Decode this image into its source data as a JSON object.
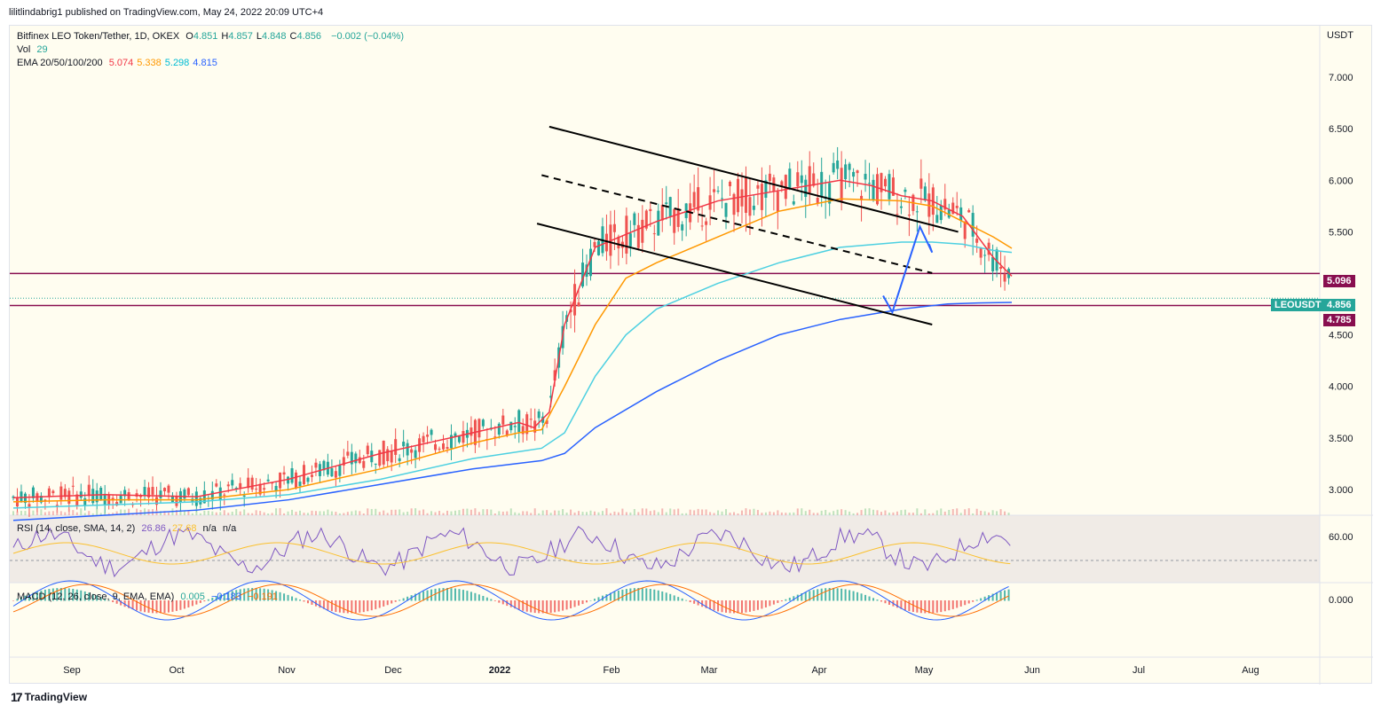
{
  "header": {
    "publisher": "lilitlindabrig1 published on TradingView.com, May 24, 2022 20:09 UTC+4"
  },
  "legend": {
    "symbol": "Bitfinex LEO Token/Tether, 1D, OKEX",
    "ohlc": [
      {
        "k": "O",
        "v": "4.851"
      },
      {
        "k": "H",
        "v": "4.857"
      },
      {
        "k": "L",
        "v": "4.848"
      },
      {
        "k": "C",
        "v": "4.856"
      }
    ],
    "change": "−0.002 (−0.04%)",
    "vol_label": "Vol",
    "vol_value": "29",
    "ema_label": "EMA 20/50/100/200",
    "ema_values": [
      {
        "v": "5.074",
        "color": "#f23645"
      },
      {
        "v": "5.338",
        "color": "#ff9800"
      },
      {
        "v": "5.298",
        "color": "#00bcd4"
      },
      {
        "v": "4.815",
        "color": "#2962ff"
      }
    ],
    "rsi_label": "RSI (14, close, SMA, 14, 2)",
    "rsi_value": "26.86",
    "rsi_sma": "27.68",
    "rsi_na1": "n/a",
    "rsi_na2": "n/a",
    "macd_label": "MACD (12, 26, close, 9, EMA, EMA)",
    "macd_hist": "0.005",
    "macd_line": "−0.183",
    "macd_signal": "−0.191"
  },
  "axis": {
    "currency": "USDT",
    "price_ticks": [
      "7.000",
      "6.500",
      "6.000",
      "5.500",
      "5.000",
      "4.500",
      "4.000",
      "3.500",
      "3.000"
    ],
    "rsi_ticks": [
      "60.00"
    ],
    "macd_ticks": [
      "0.000"
    ],
    "x_ticks": [
      "Sep",
      "Oct",
      "Nov",
      "Dec",
      "2022",
      "Feb",
      "Mar",
      "Apr",
      "May",
      "Jun",
      "Jul",
      "Aug"
    ]
  },
  "tags": {
    "resistance": "5.096",
    "symbol_name": "LEOUSDT",
    "last": "4.856",
    "support": "4.785"
  },
  "colors": {
    "up": "#26a69a",
    "down": "#ef5350",
    "ema20": "#f23645",
    "ema50": "#ff9800",
    "ema100": "#4dd0e1",
    "ema200": "#2962ff",
    "level": "#880e4f",
    "rsi": "#7e57c2",
    "rsi_sma": "#fbc02d",
    "macd": "#2962ff",
    "signal": "#ff6d00",
    "arrow": "#2962ff"
  },
  "footer": {
    "brand": "TradingView"
  },
  "chart_data": {
    "type": "candlestick",
    "ylim": [
      2.75,
      7.5
    ],
    "horizontal_levels": [
      5.096,
      4.785
    ],
    "last_price": 4.856,
    "ema": {
      "ema20": {
        "x": [
          0,
          60,
          120,
          180,
          240,
          300,
          330,
          340,
          350,
          360,
          380,
          420,
          460,
          500,
          540,
          560,
          580,
          600,
          620,
          630,
          640,
          652
        ],
        "y": [
          2.92,
          2.95,
          2.93,
          3.1,
          3.35,
          3.55,
          3.65,
          3.6,
          3.75,
          4.6,
          5.35,
          5.6,
          5.8,
          5.9,
          6.0,
          5.95,
          5.85,
          5.8,
          5.65,
          5.45,
          5.25,
          5.07
        ]
      },
      "ema50": {
        "x": [
          0,
          60,
          120,
          180,
          240,
          300,
          330,
          345,
          360,
          380,
          400,
          420,
          460,
          500,
          540,
          580,
          600,
          620,
          640,
          652
        ],
        "y": [
          2.88,
          2.9,
          2.9,
          3.0,
          3.2,
          3.45,
          3.55,
          3.58,
          4.0,
          4.6,
          5.05,
          5.2,
          5.45,
          5.7,
          5.82,
          5.8,
          5.75,
          5.6,
          5.45,
          5.34
        ]
      },
      "ema100": {
        "x": [
          0,
          60,
          120,
          180,
          240,
          300,
          345,
          360,
          380,
          400,
          420,
          460,
          500,
          540,
          580,
          600,
          620,
          640,
          652
        ],
        "y": [
          2.82,
          2.85,
          2.88,
          2.95,
          3.1,
          3.3,
          3.4,
          3.55,
          4.1,
          4.5,
          4.75,
          5.0,
          5.2,
          5.35,
          5.4,
          5.4,
          5.38,
          5.32,
          5.3
        ]
      },
      "ema200": {
        "x": [
          0,
          60,
          120,
          180,
          240,
          300,
          345,
          360,
          380,
          420,
          460,
          500,
          540,
          580,
          610,
          630,
          652
        ],
        "y": [
          2.7,
          2.75,
          2.8,
          2.9,
          3.05,
          3.2,
          3.28,
          3.35,
          3.6,
          3.95,
          4.25,
          4.5,
          4.65,
          4.75,
          4.8,
          4.81,
          4.815
        ]
      }
    },
    "channel": {
      "upper": {
        "x": [
          350,
          617
        ],
        "y": [
          6.52,
          5.5
        ]
      },
      "middle": {
        "x": [
          345,
          600
        ],
        "y": [
          6.05,
          5.1
        ]
      },
      "lower": {
        "x": [
          342,
          600
        ],
        "y": [
          5.58,
          4.6
        ]
      }
    },
    "projection": {
      "x": [
        568,
        574,
        592,
        600,
        598
      ],
      "y": [
        4.88,
        4.72,
        5.55,
        5.3,
        5.38
      ]
    }
  }
}
